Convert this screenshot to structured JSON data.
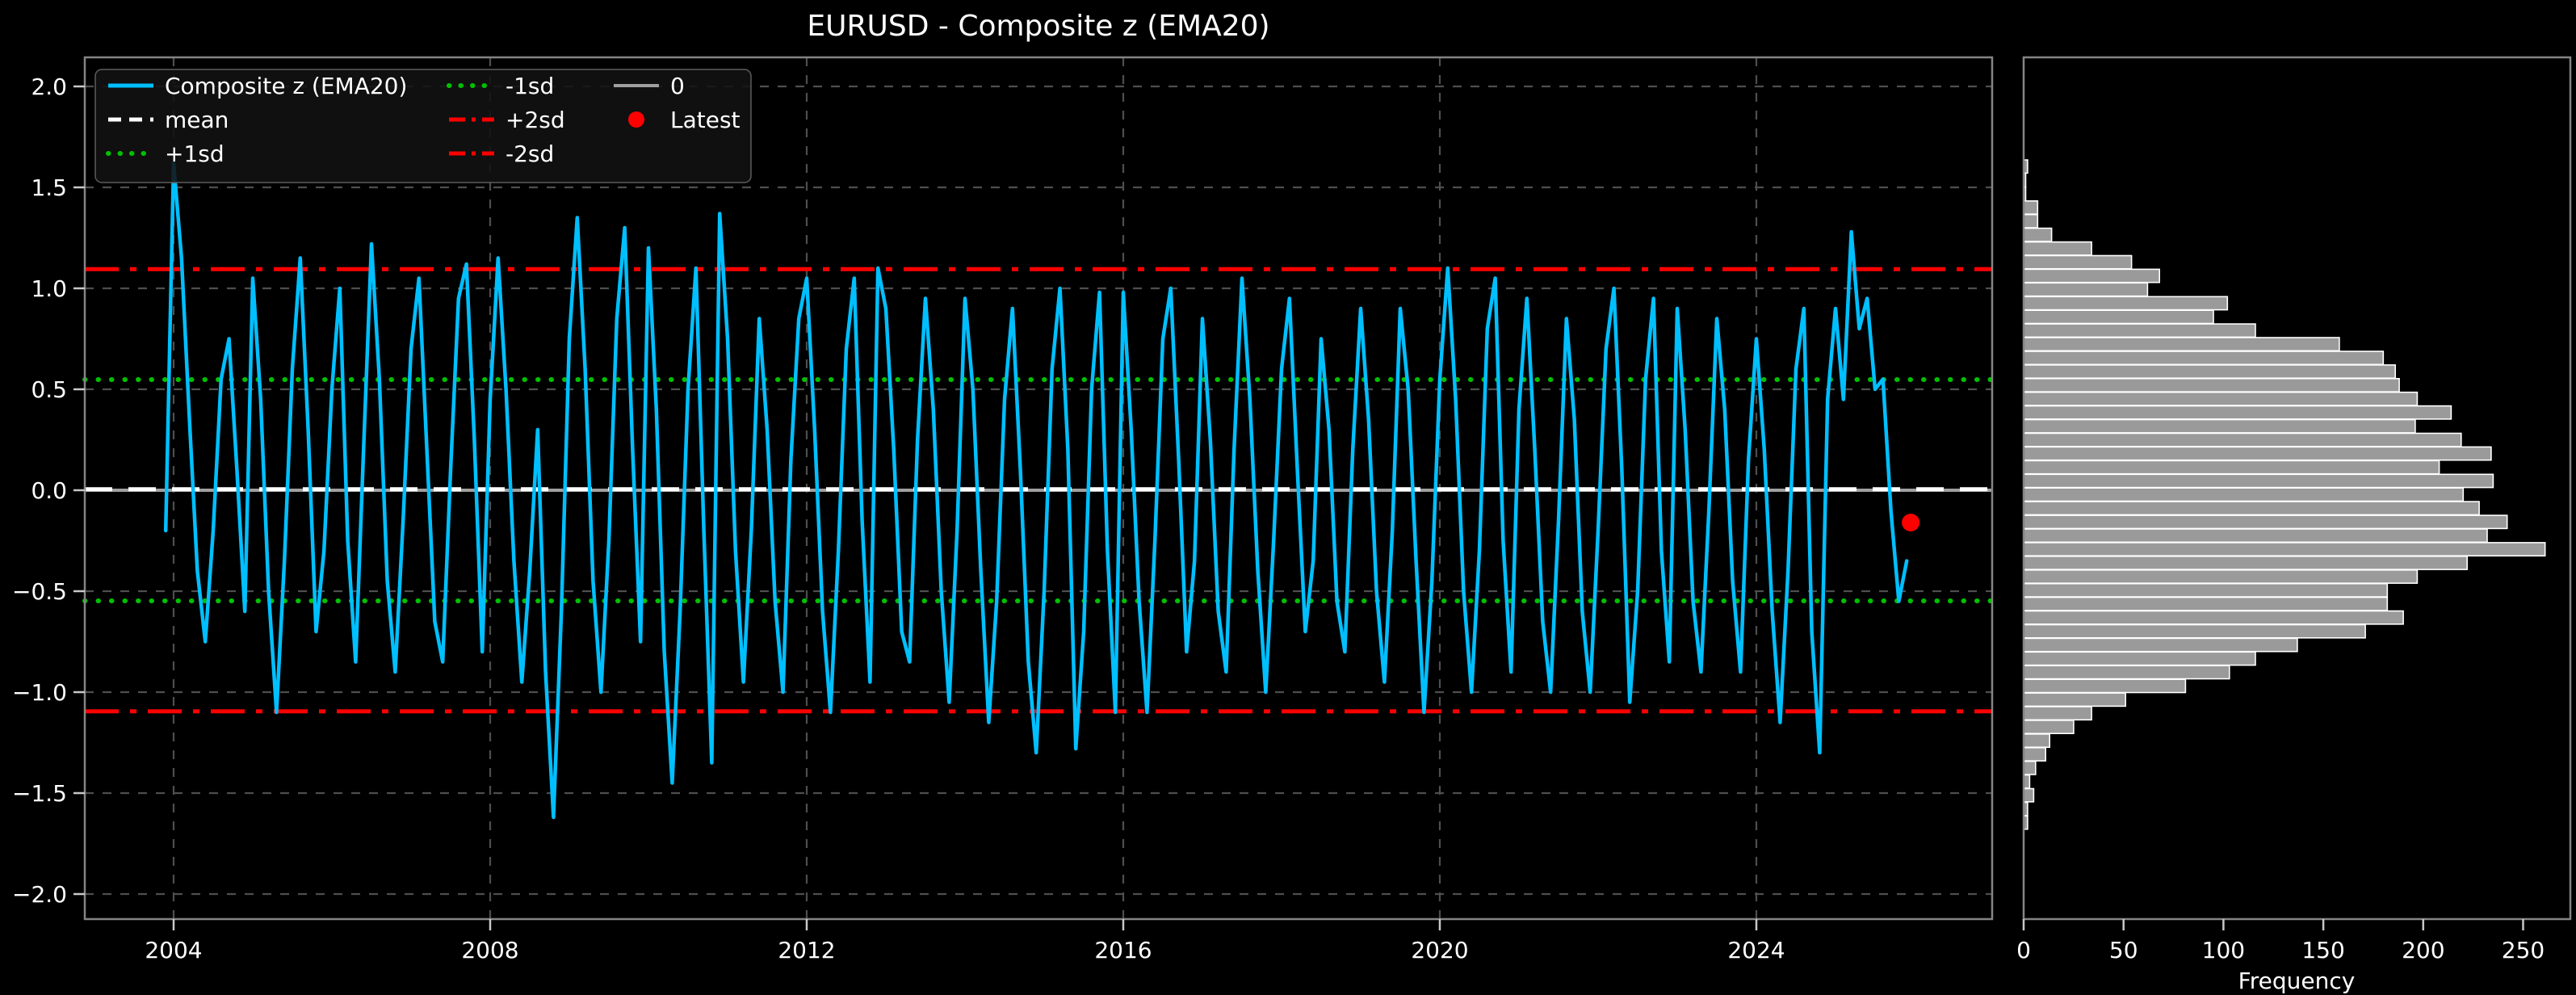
{
  "figure": {
    "title": "EURUSD - Composite z (EMA20)",
    "background": "#000000",
    "text_color": "#ffffff",
    "grid_color": "#4e4e4e",
    "spine_color": "#848484",
    "tick_color": "#c8c8c8"
  },
  "legend": {
    "items": [
      {
        "label": "Composite z (EMA20)",
        "style": "solid",
        "color": "#00BFFF",
        "col": 0,
        "row": 0
      },
      {
        "label": "mean",
        "style": "dashed",
        "color": "#FFFFFF",
        "col": 0,
        "row": 1
      },
      {
        "label": "+1sd",
        "style": "dotted",
        "color": "#00C000",
        "col": 0,
        "row": 2
      },
      {
        "label": "-1sd",
        "style": "dotted",
        "color": "#00C000",
        "col": 1,
        "row": 0
      },
      {
        "label": "+2sd",
        "style": "dashdot",
        "color": "#FF0000",
        "col": 1,
        "row": 1
      },
      {
        "label": "-2sd",
        "style": "dashdot",
        "color": "#FF0000",
        "col": 1,
        "row": 2
      },
      {
        "label": "0",
        "style": "solid",
        "color": "#A0A0A0",
        "col": 2,
        "row": 0
      },
      {
        "label": "Latest",
        "style": "marker",
        "color": "#FF0000",
        "col": 2,
        "row": 1
      }
    ]
  },
  "axes": {
    "main": {
      "y_tick_labels": [
        "2.0",
        "1.5",
        "1.0",
        "0.5",
        "0.0",
        "−0.5",
        "−1.0",
        "−1.5",
        "−2.0"
      ],
      "y_tick_values": [
        2.0,
        1.5,
        1.0,
        0.5,
        0.0,
        -0.5,
        -1.0,
        -1.5,
        -2.0
      ],
      "x_tick_labels": [
        "2004",
        "2008",
        "2012",
        "2016",
        "2020",
        "2024"
      ],
      "x_tick_values": [
        2004,
        2008,
        2012,
        2016,
        2020,
        2024
      ]
    },
    "hist": {
      "xlabel": "Frequency",
      "x_tick_labels": [
        "0",
        "50",
        "100",
        "150",
        "200",
        "250"
      ],
      "x_tick_values": [
        0,
        50,
        100,
        150,
        200,
        250
      ]
    }
  },
  "chart_data": [
    {
      "type": "line",
      "title": "EURUSD - Composite z (EMA20)",
      "xlabel": "",
      "ylabel": "",
      "xlim": [
        2002.88,
        2026.98
      ],
      "ylim": [
        -2.14,
        2.14
      ],
      "grid": true,
      "legend_position": "upper left",
      "series": [
        {
          "name": "Composite z (EMA20)",
          "color": "#00BFFF",
          "x_start": 2003.9,
          "x_step": 0.1,
          "values": [
            -0.2,
            1.62,
            1.15,
            0.35,
            -0.4,
            -0.75,
            -0.2,
            0.55,
            0.75,
            0.1,
            -0.6,
            1.05,
            0.45,
            -0.5,
            -1.1,
            -0.35,
            0.6,
            1.15,
            0.3,
            -0.7,
            -0.3,
            0.5,
            1.0,
            -0.25,
            -0.85,
            0.2,
            1.22,
            0.55,
            -0.45,
            -0.9,
            -0.15,
            0.7,
            1.05,
            0.2,
            -0.65,
            -0.85,
            0.1,
            0.95,
            1.12,
            0.25,
            -0.8,
            0.45,
            1.15,
            0.5,
            -0.35,
            -0.95,
            -0.4,
            0.3,
            -0.9,
            -1.62,
            -0.6,
            0.75,
            1.35,
            0.6,
            -0.45,
            -1.0,
            -0.25,
            0.85,
            1.3,
            0.2,
            -0.75,
            1.2,
            0.4,
            -0.8,
            -1.45,
            -0.6,
            0.5,
            1.1,
            -0.2,
            -1.35,
            1.37,
            0.75,
            -0.3,
            -0.95,
            -0.2,
            0.85,
            0.3,
            -0.55,
            -1.0,
            0.15,
            0.85,
            1.05,
            0.3,
            -0.6,
            -1.1,
            -0.3,
            0.7,
            1.05,
            -0.15,
            -0.95,
            1.1,
            0.9,
            0.2,
            -0.7,
            -0.85,
            0.25,
            0.95,
            0.4,
            -0.5,
            -1.05,
            -0.2,
            0.95,
            0.5,
            -0.4,
            -1.15,
            -0.55,
            0.45,
            0.9,
            0.1,
            -0.85,
            -1.3,
            -0.5,
            0.6,
            1.0,
            0.2,
            -1.28,
            -0.7,
            0.5,
            0.98,
            -0.3,
            -1.1,
            0.98,
            0.3,
            -0.55,
            -1.1,
            -0.25,
            0.75,
            1.0,
            0.15,
            -0.8,
            -0.35,
            0.85,
            0.25,
            -0.6,
            -0.9,
            0.2,
            1.05,
            0.45,
            -0.4,
            -1.0,
            -0.25,
            0.6,
            0.95,
            0.1,
            -0.7,
            -0.35,
            0.75,
            0.3,
            -0.55,
            -0.8,
            0.2,
            0.9,
            0.35,
            -0.5,
            -0.95,
            -0.2,
            0.9,
            0.5,
            -0.35,
            -1.1,
            -0.45,
            0.55,
            1.1,
            0.45,
            -0.5,
            -1.0,
            -0.3,
            0.8,
            1.05,
            -0.25,
            -0.9,
            0.4,
            0.95,
            0.2,
            -0.65,
            -1.0,
            -0.15,
            0.85,
            0.35,
            -0.6,
            -1.0,
            -0.2,
            0.7,
            1.0,
            0.1,
            -1.05,
            -0.5,
            0.55,
            0.95,
            -0.3,
            -0.85,
            0.9,
            0.3,
            -0.55,
            -0.9,
            -0.1,
            0.85,
            0.4,
            -0.45,
            -0.9,
            0.15,
            0.75,
            0.2,
            -0.6,
            -1.15,
            -0.4,
            0.6,
            0.9,
            -0.7,
            -1.3,
            0.45,
            0.9,
            0.45,
            1.28,
            0.8,
            0.95,
            0.5,
            0.55,
            -0.1,
            -0.55,
            -0.35
          ]
        }
      ],
      "ref_lines": [
        {
          "name": "mean",
          "value": 0.005,
          "color": "#FFFFFF",
          "style": "dashed"
        },
        {
          "name": "+1sd",
          "value": 0.548,
          "color": "#00C000",
          "style": "dotted"
        },
        {
          "name": "-1sd",
          "value": -0.548,
          "color": "#00C000",
          "style": "dotted"
        },
        {
          "name": "+2sd",
          "value": 1.095,
          "color": "#FF0000",
          "style": "dashdot"
        },
        {
          "name": "-2sd",
          "value": -1.095,
          "color": "#FF0000",
          "style": "dashdot"
        },
        {
          "name": "0",
          "value": 0.0,
          "color": "#A0A0A0",
          "style": "solid"
        }
      ],
      "latest_point": {
        "x": 2025.95,
        "y": -0.16,
        "color": "#FF0000"
      }
    },
    {
      "type": "bar",
      "orientation": "horizontal",
      "xlabel": "Frequency",
      "xlim": [
        0,
        273
      ],
      "bin_top_edge": 1.636,
      "bin_width": 0.0677,
      "bar_color": "#9A9A9A",
      "bar_edge_color": "#FFFFFF",
      "values": [
        2,
        1,
        1,
        7,
        7,
        14,
        34,
        54,
        68,
        62,
        102,
        95,
        116,
        158,
        180,
        186,
        188,
        197,
        214,
        196,
        219,
        234,
        208,
        235,
        220,
        228,
        242,
        232,
        261,
        222,
        197,
        182,
        182,
        190,
        171,
        137,
        116,
        103,
        81,
        51,
        34,
        25,
        13,
        11,
        6,
        3,
        5,
        2,
        2
      ]
    }
  ]
}
